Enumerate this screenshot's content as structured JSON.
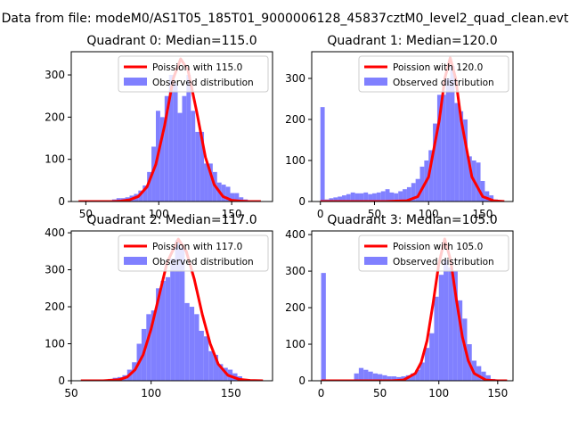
{
  "figure": {
    "suptitle": "Data from file: modeM0/AS1T05_185T01_9000006128_45837cztM0_level2_quad_clean.evt"
  },
  "chart_data": [
    {
      "type": "bar",
      "title": "Quadrant 0: Median=115.0",
      "xlim": [
        40,
        178
      ],
      "ylim": [
        0,
        355
      ],
      "xticks": [
        50,
        100,
        150
      ],
      "yticks": [
        0,
        100,
        200,
        300
      ],
      "legend": [
        "Poission with 115.0",
        "Observed distribution"
      ],
      "legend_loc": "top-right",
      "poisson_lambda": 115,
      "poisson_peak": 338,
      "histogram": {
        "bin_starts": [
          62,
          65,
          68,
          71,
          74,
          77,
          80,
          83,
          86,
          89,
          92,
          95,
          98,
          101,
          104,
          107,
          110,
          113,
          116,
          119,
          122,
          125,
          128,
          131,
          134,
          137,
          140,
          143,
          146,
          149,
          152,
          155,
          158,
          161
        ],
        "bin_width": 3,
        "values": [
          3,
          3,
          5,
          8,
          8,
          10,
          14,
          18,
          26,
          38,
          70,
          130,
          215,
          200,
          250,
          300,
          280,
          210,
          250,
          300,
          215,
          165,
          165,
          90,
          90,
          70,
          45,
          40,
          35,
          20,
          20,
          10,
          5,
          3
        ]
      },
      "poisson_curve": {
        "x": [
          45,
          62,
          68,
          74,
          80,
          86,
          92,
          98,
          104,
          110,
          115,
          120,
          126,
          132,
          138,
          144,
          150,
          156,
          162,
          170
        ],
        "y": [
          0,
          0,
          0,
          1,
          4,
          12,
          35,
          88,
          180,
          292,
          338,
          312,
          213,
          105,
          40,
          12,
          3,
          1,
          0,
          0
        ]
      }
    },
    {
      "type": "bar",
      "title": "Quadrant 1: Median=120.0",
      "xlim": [
        -8,
        178
      ],
      "ylim": [
        0,
        365
      ],
      "xticks": [
        0,
        50,
        100,
        150
      ],
      "yticks": [
        0,
        100,
        200,
        300
      ],
      "legend": [
        "Poission with 120.0",
        "Observed distribution"
      ],
      "legend_loc": "top-right",
      "poisson_lambda": 120,
      "poisson_peak": 350,
      "histogram": {
        "bin_starts": [
          0,
          4,
          8,
          12,
          16,
          20,
          24,
          28,
          32,
          36,
          40,
          44,
          48,
          52,
          56,
          60,
          64,
          68,
          72,
          76,
          80,
          84,
          88,
          92,
          96,
          100,
          104,
          108,
          112,
          116,
          120,
          124,
          128,
          132,
          136,
          140,
          144,
          148,
          152,
          156,
          160
        ],
        "bin_width": 4,
        "values": [
          230,
          5,
          8,
          10,
          12,
          15,
          18,
          22,
          20,
          20,
          22,
          18,
          20,
          22,
          25,
          30,
          22,
          20,
          25,
          30,
          35,
          45,
          55,
          85,
          100,
          125,
          190,
          260,
          260,
          300,
          330,
          240,
          220,
          200,
          110,
          100,
          95,
          50,
          25,
          15,
          5
        ]
      },
      "poisson_curve": {
        "x": [
          0,
          40,
          60,
          70,
          80,
          90,
          100,
          110,
          115,
          120,
          125,
          130,
          140,
          150,
          160,
          170
        ],
        "y": [
          0,
          0,
          0,
          1,
          2,
          12,
          60,
          200,
          300,
          350,
          300,
          200,
          60,
          12,
          2,
          0
        ]
      }
    },
    {
      "type": "bar",
      "title": "Quadrant 2: Median=117.0",
      "xlim": [
        50,
        176
      ],
      "ylim": [
        0,
        405
      ],
      "xticks": [
        50,
        100,
        150
      ],
      "yticks": [
        0,
        100,
        200,
        300,
        400
      ],
      "legend": [
        "Poission with 117.0",
        "Observed distribution"
      ],
      "legend_loc": "top-right",
      "poisson_lambda": 117,
      "poisson_peak": 383,
      "histogram": {
        "bin_starts": [
          70,
          73,
          76,
          79,
          82,
          85,
          88,
          91,
          94,
          97,
          100,
          103,
          106,
          109,
          112,
          115,
          118,
          121,
          124,
          127,
          130,
          133,
          136,
          139,
          142,
          145,
          148,
          151,
          154,
          157,
          160
        ],
        "bin_width": 3,
        "values": [
          3,
          5,
          8,
          10,
          15,
          30,
          50,
          100,
          140,
          180,
          190,
          250,
          270,
          280,
          330,
          380,
          360,
          210,
          200,
          180,
          135,
          120,
          80,
          70,
          45,
          35,
          30,
          20,
          12,
          5,
          3
        ]
      },
      "poisson_curve": {
        "x": [
          56,
          70,
          80,
          85,
          90,
          95,
          100,
          105,
          110,
          117,
          122,
          127,
          132,
          137,
          142,
          148,
          155,
          162,
          170
        ],
        "y": [
          0,
          0,
          3,
          10,
          30,
          70,
          140,
          230,
          320,
          383,
          350,
          275,
          180,
          100,
          45,
          15,
          4,
          1,
          0
        ]
      }
    },
    {
      "type": "bar",
      "title": "Quadrant 3: Median=105.0",
      "xlim": [
        -8,
        163
      ],
      "ylim": [
        0,
        410
      ],
      "xticks": [
        0,
        50,
        100,
        150
      ],
      "yticks": [
        0,
        100,
        200,
        300,
        400
      ],
      "legend": [
        "Poission with 105.0",
        "Observed distribution"
      ],
      "legend_loc": "top-right",
      "poisson_lambda": 105,
      "poisson_peak": 388,
      "histogram": {
        "bin_starts": [
          0,
          4,
          8,
          12,
          16,
          20,
          24,
          28,
          32,
          36,
          40,
          44,
          48,
          52,
          56,
          60,
          64,
          68,
          72,
          76,
          80,
          84,
          88,
          92,
          96,
          100,
          104,
          108,
          112,
          116,
          120,
          124,
          128,
          132,
          136,
          140,
          144,
          148
        ],
        "bin_width": 4,
        "values": [
          295,
          0,
          0,
          0,
          0,
          0,
          0,
          20,
          35,
          30,
          25,
          20,
          18,
          15,
          12,
          12,
          10,
          12,
          15,
          20,
          30,
          50,
          90,
          130,
          230,
          290,
          330,
          310,
          300,
          220,
          170,
          100,
          55,
          40,
          25,
          15,
          5,
          3
        ]
      },
      "poisson_curve": {
        "x": [
          0,
          40,
          60,
          70,
          80,
          85,
          90,
          95,
          100,
          105,
          110,
          115,
          120,
          125,
          130,
          140,
          150,
          158
        ],
        "y": [
          0,
          0,
          0,
          2,
          20,
          50,
          110,
          210,
          320,
          388,
          330,
          220,
          120,
          55,
          20,
          2,
          0,
          0
        ]
      }
    }
  ]
}
